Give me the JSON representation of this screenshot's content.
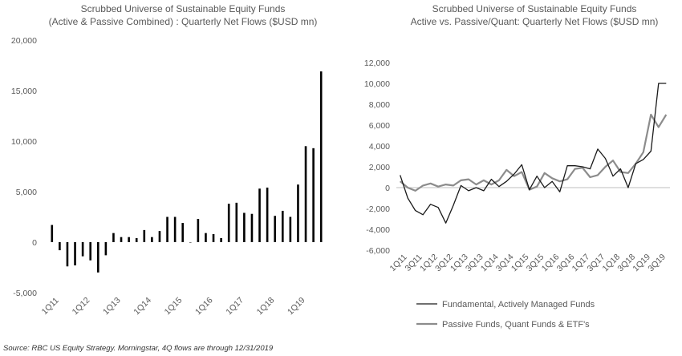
{
  "colors": {
    "bar": "#000000",
    "fundamental": "#1a1a1a",
    "passive": "#8c8c8c",
    "axis": "#bfbfbf",
    "text": "#595959"
  },
  "source": "Source: RBC US Equity Strategy. Morningstar, 4Q flows are through 12/31/2019",
  "chart_data": [
    {
      "type": "bar",
      "title": "Scrubbed Universe of Sustainable Equity Funds",
      "subtitle": "(Active & Passive Combined) : Quarterly Net Flows ($USD mn)",
      "categories": [
        "1Q11",
        "2Q11",
        "3Q11",
        "4Q11",
        "1Q12",
        "2Q12",
        "3Q12",
        "4Q12",
        "1Q13",
        "2Q13",
        "3Q13",
        "4Q13",
        "1Q14",
        "2Q14",
        "3Q14",
        "4Q14",
        "1Q15",
        "2Q15",
        "3Q15",
        "4Q15",
        "1Q16",
        "2Q16",
        "3Q16",
        "4Q16",
        "1Q17",
        "2Q17",
        "3Q17",
        "4Q17",
        "1Q18",
        "2Q18",
        "3Q18",
        "4Q18",
        "1Q19",
        "2Q19",
        "3Q19",
        "4Q19"
      ],
      "tick_labels": [
        "1Q11",
        "1Q12",
        "1Q13",
        "1Q14",
        "1Q15",
        "1Q16",
        "1Q17",
        "1Q18",
        "1Q19"
      ],
      "values": [
        1700,
        -800,
        -2400,
        -2300,
        -1400,
        -1800,
        -3000,
        -1300,
        900,
        500,
        500,
        400,
        1200,
        500,
        1100,
        2500,
        2500,
        1900,
        0,
        2300,
        900,
        800,
        400,
        3800,
        3900,
        2900,
        2800,
        5300,
        5400,
        2600,
        3100,
        2500,
        5700,
        9500,
        9300,
        16900
      ],
      "yticks": [
        -5000,
        0,
        5000,
        10000,
        15000,
        20000
      ],
      "ytick_labels": [
        "-5,000",
        "0",
        "5,000",
        "10,000",
        "15,000",
        "20,000"
      ],
      "ylim": [
        -5000,
        20000
      ]
    },
    {
      "type": "line",
      "title": "Scrubbed Universe of Sustainable Equity Funds",
      "subtitle": "Active vs. Passive/Quant: Quarterly Net Flows ($USD mn)",
      "categories": [
        "1Q11",
        "2Q11",
        "3Q11",
        "4Q11",
        "1Q12",
        "2Q12",
        "3Q12",
        "4Q12",
        "1Q13",
        "2Q13",
        "3Q13",
        "4Q13",
        "1Q14",
        "2Q14",
        "3Q14",
        "4Q14",
        "1Q15",
        "2Q15",
        "3Q15",
        "4Q15",
        "1Q16",
        "2Q16",
        "3Q16",
        "4Q16",
        "1Q17",
        "2Q17",
        "3Q17",
        "4Q17",
        "1Q18",
        "2Q18",
        "3Q18",
        "4Q18",
        "1Q19",
        "2Q19",
        "3Q19",
        "4Q19"
      ],
      "tick_labels": [
        "1Q11",
        "3Q11",
        "1Q12",
        "3Q12",
        "1Q13",
        "3Q13",
        "1Q14",
        "3Q14",
        "1Q15",
        "3Q15",
        "1Q16",
        "3Q16",
        "1Q17",
        "3Q17",
        "1Q18",
        "3Q18",
        "1Q19",
        "3Q19"
      ],
      "series": [
        {
          "name": "Fundamental, Actively Managed Funds",
          "values": [
            1200,
            -1000,
            -2200,
            -2600,
            -1600,
            -1900,
            -3400,
            -1700,
            200,
            -300,
            0,
            -300,
            800,
            100,
            600,
            1300,
            2200,
            -200,
            1100,
            0,
            600,
            -400,
            2100,
            2100,
            2000,
            1800,
            3700,
            2800,
            1100,
            1800,
            0,
            2300,
            2700,
            3500,
            10000,
            10000
          ]
        },
        {
          "name": "Passive Funds, Quant Funds & ETF's",
          "values": [
            600,
            0,
            -300,
            200,
            400,
            100,
            300,
            200,
            700,
            800,
            300,
            700,
            300,
            700,
            1700,
            1100,
            1500,
            -200,
            100,
            1400,
            900,
            600,
            800,
            1800,
            1900,
            1000,
            1200,
            2000,
            2600,
            1500,
            1400,
            2300,
            3400,
            7000,
            5800,
            7000
          ]
        }
      ],
      "yticks": [
        -6000,
        -4000,
        -2000,
        0,
        2000,
        4000,
        6000,
        8000,
        10000,
        12000
      ],
      "ytick_labels": [
        "-6,000",
        "-4,000",
        "-2,000",
        "0",
        "2,000",
        "4,000",
        "6,000",
        "8,000",
        "10,000",
        "12,000"
      ],
      "ylim": [
        -6000,
        12000
      ],
      "legend": "bottom"
    }
  ]
}
